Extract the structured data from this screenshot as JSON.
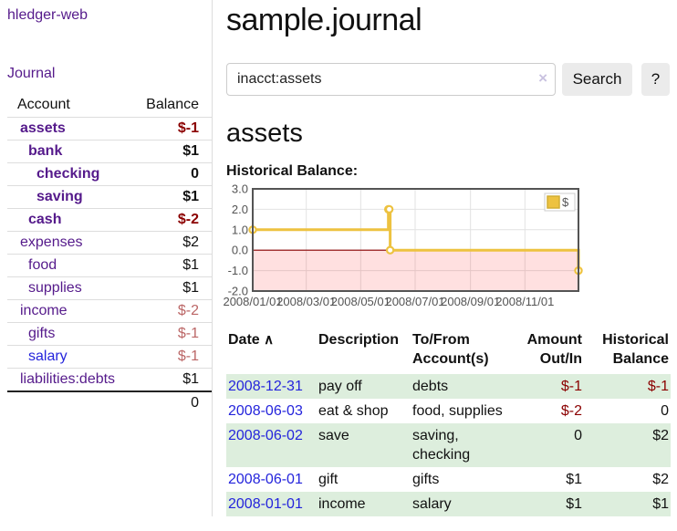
{
  "colors": {
    "purple_link": "#551a8b",
    "blue_link": "#2424dc",
    "negative_strong": "#8b0000",
    "negative_muted": "#bb6666",
    "row_green": "#ddeedd",
    "series_gold": "#edc240",
    "negative_region_pink": "rgba(255,0,0,0.12)",
    "zero_line_red": "#8b0000",
    "grid_gray": "#e2e2e2",
    "chart_border": "#545454"
  },
  "sidebar": {
    "brand": "hledger-web",
    "journal_link": "Journal",
    "account_header": "Account",
    "balance_header": "Balance",
    "accounts": [
      {
        "name": "assets",
        "level": 1,
        "emphasis": true,
        "name_color": "purple",
        "balance": "$-1",
        "balance_style": "negative-strong"
      },
      {
        "name": "bank",
        "level": 2,
        "emphasis": true,
        "name_color": "purple",
        "balance": "$1",
        "balance_style": "bold"
      },
      {
        "name": "checking",
        "level": 3,
        "emphasis": true,
        "name_color": "purple",
        "balance": "0",
        "balance_style": "bold"
      },
      {
        "name": "saving",
        "level": 3,
        "emphasis": true,
        "name_color": "purple",
        "balance": "$1",
        "balance_style": "bold"
      },
      {
        "name": "cash",
        "level": 2,
        "emphasis": true,
        "name_color": "purple",
        "balance": "$-2",
        "balance_style": "negative-strong"
      },
      {
        "name": "expenses",
        "level": 1,
        "emphasis": false,
        "name_color": "purple",
        "balance": "$2",
        "balance_style": "plain"
      },
      {
        "name": "food",
        "level": 2,
        "emphasis": false,
        "name_color": "purple",
        "balance": "$1",
        "balance_style": "plain"
      },
      {
        "name": "supplies",
        "level": 2,
        "emphasis": false,
        "name_color": "purple",
        "balance": "$1",
        "balance_style": "plain"
      },
      {
        "name": "income",
        "level": 1,
        "emphasis": false,
        "name_color": "purple",
        "balance": "$-2",
        "balance_style": "negative-muted"
      },
      {
        "name": "gifts",
        "level": 2,
        "emphasis": false,
        "name_color": "purple",
        "balance": "$-1",
        "balance_style": "negative-muted"
      },
      {
        "name": "salary",
        "level": 2,
        "emphasis": false,
        "name_color": "blue",
        "balance": "$-1",
        "balance_style": "negative-muted"
      },
      {
        "name": "liabilities:debts",
        "level": 1,
        "emphasis": false,
        "name_color": "purple",
        "balance": "$1",
        "balance_style": "plain"
      }
    ],
    "total": "0"
  },
  "main": {
    "title": "sample.journal",
    "search": {
      "value": "inacct:assets",
      "clear_icon": "×",
      "search_button": "Search",
      "help_button": "?"
    },
    "account_heading": "assets",
    "chart_title": "Historical Balance:"
  },
  "chart_data": {
    "type": "line",
    "step": true,
    "title": "Historical Balance",
    "series": [
      {
        "name": "$",
        "color": "#edc240",
        "points": [
          [
            "2008-01-01",
            1.0
          ],
          [
            "2008-06-01",
            2.0
          ],
          [
            "2008-06-02",
            2.0
          ],
          [
            "2008-06-03",
            0.0
          ],
          [
            "2008-12-31",
            -1.0
          ]
        ]
      }
    ],
    "x_range": [
      "2008-01-01",
      "2008-12-31"
    ],
    "x_ticks": [
      "2008/01/01",
      "2008/03/01",
      "2008/05/01",
      "2008/07/01",
      "2008/09/01",
      "2008/11/01"
    ],
    "y_ticks": [
      3.0,
      2.0,
      1.0,
      0.0,
      -1.0,
      -2.0
    ],
    "ylim": [
      -2.0,
      3.0
    ],
    "grid": true,
    "legend_position": "top-right",
    "negative_region_shaded": true,
    "zero_line": true
  },
  "register": {
    "headers": {
      "date": "Date",
      "description": "Description",
      "account": "To/From Account(s)",
      "amount": "Amount Out/In",
      "balance": "Historical Balance"
    },
    "sort_indicator": "∧",
    "rows": [
      {
        "date": "2008-12-31",
        "description": "pay off",
        "account": "debts",
        "amount": "$-1",
        "amount_negative": true,
        "balance": "$-1",
        "balance_negative": true
      },
      {
        "date": "2008-06-03",
        "description": "eat & shop",
        "account": "food, supplies",
        "amount": "$-2",
        "amount_negative": true,
        "balance": "0",
        "balance_negative": false
      },
      {
        "date": "2008-06-02",
        "description": "save",
        "account": "saving, checking",
        "amount": "0",
        "amount_negative": false,
        "balance": "$2",
        "balance_negative": false
      },
      {
        "date": "2008-06-01",
        "description": "gift",
        "account": "gifts",
        "amount": "$1",
        "amount_negative": false,
        "balance": "$2",
        "balance_negative": false
      },
      {
        "date": "2008-01-01",
        "description": "income",
        "account": "salary",
        "amount": "$1",
        "amount_negative": false,
        "balance": "$1",
        "balance_negative": false
      }
    ]
  }
}
